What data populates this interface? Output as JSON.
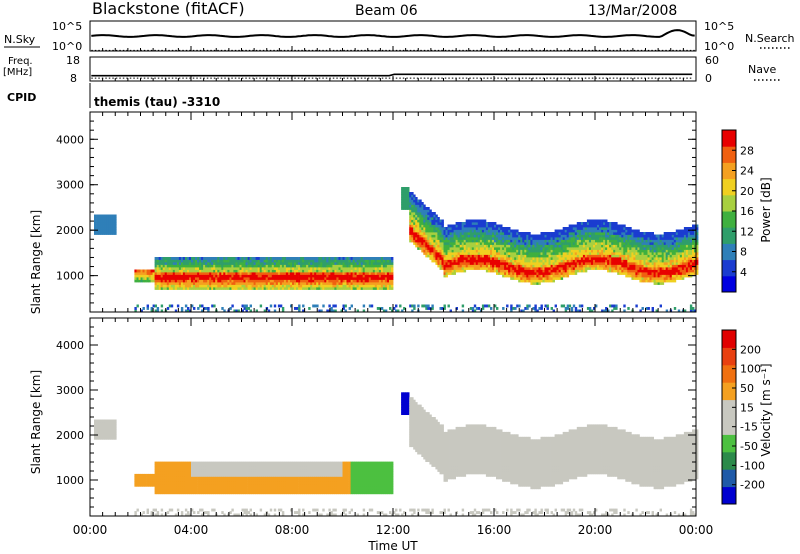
{
  "header": {
    "station": "Blackstone (fitACF)",
    "beam": "Beam 06",
    "date": "13/Mar/2008"
  },
  "aux": {
    "nsky_label": "N.Sky",
    "nsearch_label": "N.Search",
    "log_ticks": [
      "10^5",
      "10^0"
    ],
    "freq_label_1": "Freq.",
    "freq_label_2": "[MHz]",
    "freq_ticks": [
      "18",
      "8"
    ],
    "nave_label": "Nave",
    "nave_ticks": [
      "60",
      "0"
    ],
    "cpid_label": "CPID",
    "cpid_text": "themis (tau) -3310"
  },
  "chart_data": [
    {
      "type": "heatmap",
      "name": "power",
      "ylabel": "Slant Range [km]",
      "yticks": [
        "4000",
        "3000",
        "2000",
        "1000"
      ],
      "ylim": [
        200,
        4600
      ],
      "xlim": [
        0,
        24
      ],
      "colorbar_label": "Power [dB]",
      "colorbar_ticks": [
        "28",
        "24",
        "20",
        "16",
        "12",
        "8",
        "4"
      ],
      "colorscale": [
        "#0000e0",
        "#1a3cd0",
        "#2f7fb8",
        "#2f9e6a",
        "#3fb03f",
        "#a8d040",
        "#f0d020",
        "#f4a020",
        "#f06010",
        "#e80000"
      ]
    },
    {
      "type": "heatmap",
      "name": "velocity",
      "ylabel": "Slant Range [km]",
      "yticks": [
        "4000",
        "3000",
        "2000",
        "1000"
      ],
      "ylim": [
        200,
        4600
      ],
      "xlim": [
        0,
        24
      ],
      "colorbar_label": "Velocity [m s⁻¹]",
      "colorbar_ticks": [
        "200",
        "100",
        "50",
        "15",
        "-15",
        "-50",
        "-100",
        "-200"
      ],
      "colorscale": [
        "#0000d0",
        "#1f5aa8",
        "#2b8a4a",
        "#4cc040",
        "#c8c8c0",
        "#c8c8c0",
        "#f4a020",
        "#f07010",
        "#e84010",
        "#e00000"
      ]
    }
  ],
  "xaxis": {
    "ticks": [
      "00:00",
      "04:00",
      "08:00",
      "12:00",
      "16:00",
      "20:00",
      "00:00"
    ],
    "label": "Time UT"
  }
}
